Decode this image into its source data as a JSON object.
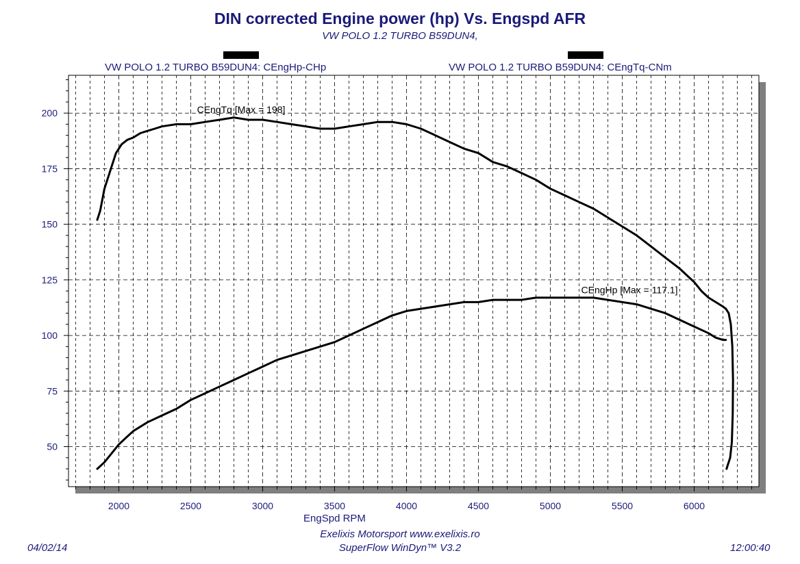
{
  "header": {
    "title": "DIN corrected Engine power (hp) Vs. Engspd AFR",
    "subtitle": "VW POLO 1.2 TURBO B59DUN4,"
  },
  "legend": {
    "left": "VW POLO 1.2 TURBO B59DUN4: CEngHp-CHp",
    "right": "VW POLO 1.2 TURBO B59DUN4: CEngTq-CNm"
  },
  "footer": {
    "company": "Exelixis Motorsport www.exelixis.ro",
    "software": "SuperFlow WinDyn™ V3.2",
    "date": "04/02/14",
    "time": "12:00:40"
  },
  "colors": {
    "text": "#1a1a7a",
    "curve": "#000000",
    "shadow": "#7f7f7f",
    "grid": "#000000"
  },
  "chart_data": {
    "type": "line",
    "xlabel": "EngSpd RPM",
    "ylabel": "",
    "xlim": [
      1650,
      6450
    ],
    "ylim": [
      32,
      217
    ],
    "xticks": [
      2000,
      2500,
      3000,
      3500,
      4000,
      4500,
      5000,
      5500,
      6000
    ],
    "yticks": [
      50,
      75,
      100,
      125,
      150,
      175,
      200
    ],
    "grid": true,
    "annotations": [
      {
        "text": "CEngTq [Max = 198]",
        "x": 2850,
        "y": 200
      },
      {
        "text": "CEngHp [Max = 117.1]",
        "x": 5550,
        "y": 119
      }
    ],
    "series": [
      {
        "name": "CEngTq",
        "x": [
          1850,
          1870,
          1900,
          1940,
          1980,
          2020,
          2060,
          2100,
          2150,
          2200,
          2250,
          2300,
          2400,
          2500,
          2600,
          2700,
          2800,
          2900,
          3000,
          3100,
          3200,
          3300,
          3400,
          3500,
          3600,
          3700,
          3800,
          3900,
          4000,
          4100,
          4200,
          4300,
          4400,
          4500,
          4600,
          4700,
          4800,
          4900,
          5000,
          5100,
          5200,
          5300,
          5400,
          5500,
          5600,
          5700,
          5800,
          5900,
          5950,
          6000,
          6050,
          6100,
          6150,
          6200,
          6220
        ],
        "values": [
          152,
          156,
          166,
          174,
          182,
          186,
          188,
          189,
          191,
          192,
          193,
          194,
          195,
          195,
          196,
          197,
          198,
          197,
          197,
          196,
          195,
          194,
          193,
          193,
          194,
          195,
          196,
          196,
          195,
          193,
          190,
          187,
          184,
          182,
          178,
          176,
          173,
          170,
          166,
          163,
          160,
          157,
          153,
          149,
          145,
          140,
          135,
          130,
          127,
          124,
          120,
          117,
          115,
          113,
          112
        ]
      },
      {
        "name": "CEngHp",
        "x": [
          1850,
          1900,
          1950,
          2000,
          2050,
          2100,
          2200,
          2300,
          2400,
          2500,
          2600,
          2700,
          2800,
          2900,
          3000,
          3100,
          3200,
          3300,
          3400,
          3500,
          3600,
          3700,
          3800,
          3900,
          4000,
          4100,
          4200,
          4300,
          4400,
          4500,
          4600,
          4700,
          4800,
          4900,
          5000,
          5100,
          5200,
          5300,
          5400,
          5500,
          5600,
          5700,
          5800,
          5900,
          6000,
          6100,
          6150,
          6200,
          6220
        ],
        "values": [
          40,
          43,
          47,
          51,
          54,
          57,
          61,
          64,
          67,
          71,
          74,
          77,
          80,
          83,
          86,
          89,
          91,
          93,
          95,
          97,
          100,
          103,
          106,
          109,
          111,
          112,
          113,
          114,
          115,
          115,
          116,
          116,
          116,
          117,
          117,
          117,
          117,
          117,
          116,
          115,
          114,
          112,
          110,
          107,
          104,
          101,
          99,
          98,
          98
        ]
      }
    ],
    "tail": {
      "x": [
        6220,
        6240,
        6255,
        6265,
        6270,
        6268,
        6262,
        6250,
        6235,
        6225
      ],
      "values": [
        112,
        110,
        105,
        95,
        80,
        65,
        52,
        45,
        42,
        40
      ]
    }
  }
}
